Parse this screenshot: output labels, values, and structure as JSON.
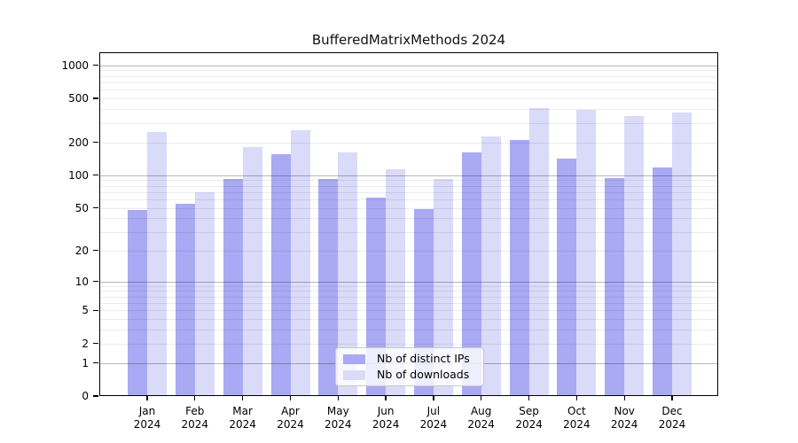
{
  "title": "BufferedMatrixMethods 2024",
  "colors": {
    "distinct_ips_bar": "#a9a9f4",
    "downloads_bar": "#dadaf9",
    "grid_major": "rgba(0,0,0,0.28)",
    "grid_minor": "rgba(0,0,0,0.075)",
    "axis": "#000000",
    "legend_background": "rgba(255,255,255,0.8)",
    "legend_border": "#c9c9c9",
    "text": "#000000"
  },
  "legend": {
    "items": [
      {
        "label": "Nb of distinct IPs",
        "color_key": "distinct_ips_bar"
      },
      {
        "label": "Nb of downloads",
        "color_key": "downloads_bar"
      }
    ]
  },
  "y_axis": {
    "scale": "log10(value+1)",
    "tick_labels": [
      "1000",
      "500",
      "200",
      "100",
      "50",
      "20",
      "10",
      "5",
      "2",
      "1",
      "0"
    ],
    "tick_values": [
      1000,
      500,
      200,
      100,
      50,
      20,
      10,
      5,
      2,
      1,
      0
    ]
  },
  "x_axis": {
    "months": [
      "Jan",
      "Feb",
      "Mar",
      "Apr",
      "May",
      "Jun",
      "Jul",
      "Aug",
      "Sep",
      "Oct",
      "Nov",
      "Dec"
    ],
    "year": "2024"
  },
  "chart_data": {
    "type": "bar",
    "title": "BufferedMatrixMethods 2024",
    "categories": [
      "Jan 2024",
      "Feb 2024",
      "Mar 2024",
      "Apr 2024",
      "May 2024",
      "Jun 2024",
      "Jul 2024",
      "Aug 2024",
      "Sep 2024",
      "Oct 2024",
      "Nov 2024",
      "Dec 2024"
    ],
    "series": [
      {
        "name": "Nb of distinct IPs",
        "values": [
          48,
          55,
          93,
          155,
          92,
          62,
          49,
          162,
          210,
          141,
          94,
          118
        ]
      },
      {
        "name": "Nb of downloads",
        "values": [
          248,
          70,
          180,
          258,
          163,
          113,
          93,
          226,
          410,
          395,
          345,
          370
        ]
      }
    ],
    "yscale": "log10(value+1)",
    "ylim": [
      0,
      1300
    ],
    "grid": true,
    "legend_position": "inside-bottom-center"
  }
}
